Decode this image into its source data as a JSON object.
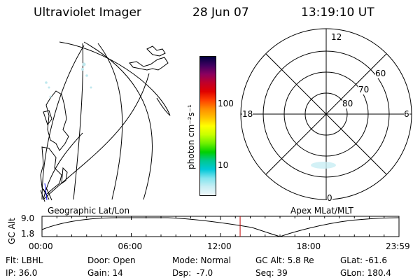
{
  "header": {
    "instrument": "Ultraviolet Imager",
    "date": "28 Jun 07",
    "time": "13:19:10 UT"
  },
  "colorbar": {
    "unit_label": "photon cm⁻²s⁻¹",
    "ticks": [
      "100",
      "10"
    ],
    "colors": [
      "#000040",
      "#400060",
      "#8a0060",
      "#c0002a",
      "#e00000",
      "#ff4000",
      "#ff8c00",
      "#ffc000",
      "#ffff00",
      "#c8ff00",
      "#6ef000",
      "#00d000",
      "#00c890",
      "#00c8d8",
      "#80e4ee",
      "#c8eef4",
      "#f0f8fa"
    ]
  },
  "polar_plot": {
    "mlt_labels": [
      "12",
      "18",
      "6",
      "0"
    ],
    "lat_labels": [
      "60",
      "70",
      "80"
    ]
  },
  "timeline": {
    "left_title": "Geographic Lat/Lon",
    "right_title": "Apex MLat/MLT",
    "ylabel": "GC Alt",
    "y_ticks": [
      "9.0",
      "1.8"
    ],
    "x_ticks": [
      "00:00",
      "06:00",
      "12:00",
      "18:00",
      "23:59"
    ],
    "current_time_hours": 13.32,
    "marker_color": "#c00000"
  },
  "info": {
    "filter": "Flt: LBHL",
    "door": "Door: Open",
    "mode": "Mode: Normal",
    "gc_alt": "GC Alt: 5.8 Re",
    "glat": "GLat: -61.6",
    "ip": "IP: 36.0",
    "gain": "Gain: 14",
    "dsp": "Dsp:  -7.0",
    "seq": "Seq: 39",
    "glon": "GLon: 180.4"
  }
}
